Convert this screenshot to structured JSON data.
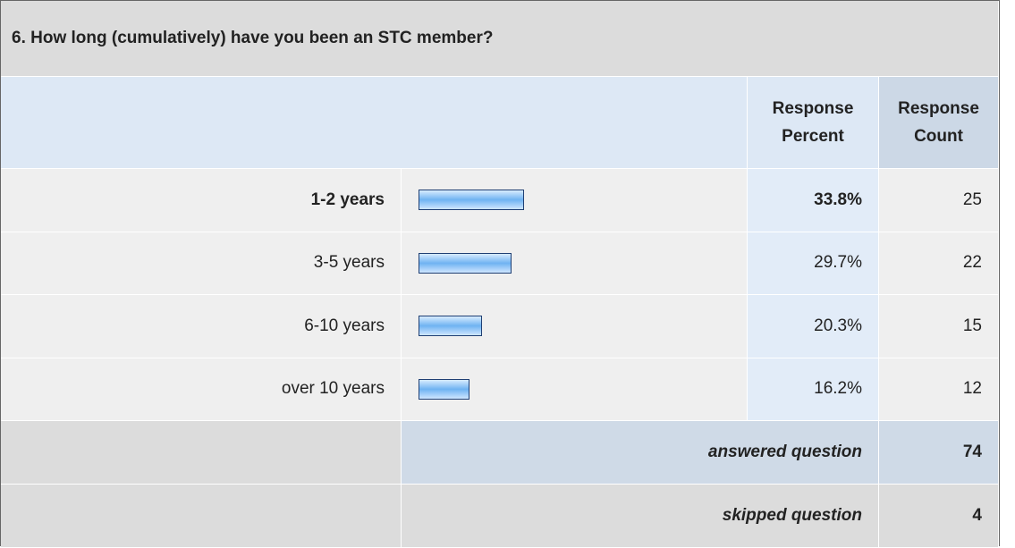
{
  "title": "6. How long (cumulatively) have you been an STC member?",
  "headers": [
    "Response Percent",
    "Response Count"
  ],
  "rows": [
    {
      "label": "1-2 years",
      "percent": 33.8,
      "percent_label": "33.8%",
      "count": 25
    },
    {
      "label": "3-5 years",
      "percent": 29.7,
      "percent_label": "29.7%",
      "count": 22
    },
    {
      "label": "6-10 years",
      "percent": 20.3,
      "percent_label": "20.3%",
      "count": 15
    },
    {
      "label": "over 10 years",
      "percent": 16.2,
      "percent_label": "16.2%",
      "count": 12
    }
  ],
  "footer": [
    {
      "label": "answered question",
      "value": 74
    },
    {
      "label": "skipped question",
      "value": 4
    }
  ]
}
